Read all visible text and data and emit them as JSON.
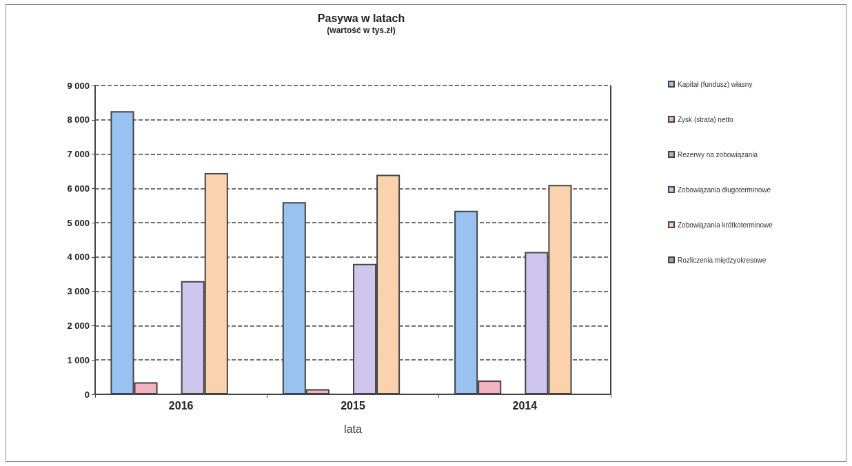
{
  "chart_data": {
    "type": "bar",
    "title": "Pasywa w latach",
    "subtitle": "(wartość w tys.zł)",
    "xlabel": "lata",
    "categories": [
      "2016",
      "2015",
      "2014"
    ],
    "series": [
      {
        "name": "Kapitał (fundusz) własny",
        "color": "#99c2f0",
        "values": [
          8250,
          5600,
          5350
        ]
      },
      {
        "name": "Zysk (strata) netto",
        "color": "#f2b3c0",
        "values": [
          350,
          150,
          400
        ]
      },
      {
        "name": "Rezerwy na zobowiązania",
        "color": "#b8b8b8",
        "values": [
          0,
          0,
          0
        ]
      },
      {
        "name": "Zobowiązania długoterminowe",
        "color": "#cfc6ee",
        "values": [
          3300,
          3800,
          4150
        ]
      },
      {
        "name": "Zobowiązania krótkoterminowe",
        "color": "#fbd2ae",
        "values": [
          6450,
          6400,
          6100
        ]
      },
      {
        "name": "Rozliczenia międzyokresowe",
        "color": "#a0a0a0",
        "values": [
          0,
          0,
          0
        ]
      }
    ],
    "ylim": [
      0,
      9000
    ],
    "yticks": [
      {
        "value": 0,
        "label": "0"
      },
      {
        "value": 1000,
        "label": "1 000"
      },
      {
        "value": 2000,
        "label": "2 000"
      },
      {
        "value": 3000,
        "label": "3 000"
      },
      {
        "value": 4000,
        "label": "4 000"
      },
      {
        "value": 5000,
        "label": "5 000"
      },
      {
        "value": 6000,
        "label": "6 000"
      },
      {
        "value": 7000,
        "label": "7 000"
      },
      {
        "value": 8000,
        "label": "8 000"
      },
      {
        "value": 9000,
        "label": "9 000"
      }
    ],
    "grid": "y",
    "legend": "right"
  }
}
